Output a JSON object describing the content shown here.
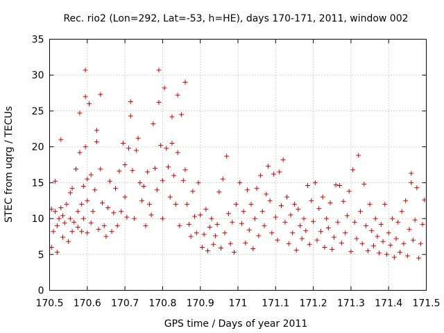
{
  "chart_data": {
    "type": "scatter",
    "title": "Rec. rio2 (Lon=292, Lat=-53, h=HE), days 170-171, 2011, window 002",
    "xlabel": "GPS time / Days of year 2011",
    "ylabel": "STEC from uqrg / TECUs",
    "xlim": [
      170.5,
      171.5
    ],
    "ylim": [
      0,
      35
    ],
    "x_ticks": [
      "170.5",
      "170.6",
      "170.7",
      "170.8",
      "170.9",
      "171",
      "171.1",
      "171.2",
      "171.3",
      "171.4",
      "171.5"
    ],
    "y_ticks": [
      "0",
      "5",
      "10",
      "15",
      "20",
      "25",
      "30",
      "35"
    ],
    "grid": true,
    "marker": "plus",
    "marker_color": "#cc0000",
    "series": [
      {
        "name": "",
        "points": [
          [
            170.505,
            11.3
          ],
          [
            170.505,
            6.0
          ],
          [
            170.51,
            8.2
          ],
          [
            170.515,
            11.0
          ],
          [
            170.515,
            15.2
          ],
          [
            170.52,
            9.0
          ],
          [
            170.52,
            5.3
          ],
          [
            170.525,
            10.0
          ],
          [
            170.53,
            21.0
          ],
          [
            170.53,
            11.5
          ],
          [
            170.535,
            10.4
          ],
          [
            170.535,
            7.4
          ],
          [
            170.54,
            9.4
          ],
          [
            170.545,
            12.0
          ],
          [
            170.55,
            6.8
          ],
          [
            170.555,
            13.6
          ],
          [
            170.555,
            10.0
          ],
          [
            170.56,
            14.2
          ],
          [
            170.56,
            8.2
          ],
          [
            170.565,
            9.5
          ],
          [
            170.57,
            16.9
          ],
          [
            170.575,
            11.0
          ],
          [
            170.575,
            8.8
          ],
          [
            170.58,
            24.7
          ],
          [
            170.58,
            19.2
          ],
          [
            170.585,
            12.0
          ],
          [
            170.585,
            8.2
          ],
          [
            170.59,
            14.5
          ],
          [
            170.59,
            10.0
          ],
          [
            170.595,
            30.7
          ],
          [
            170.595,
            27.0
          ],
          [
            170.595,
            20.0
          ],
          [
            170.6,
            15.5
          ],
          [
            170.6,
            12.5
          ],
          [
            170.6,
            8.0
          ],
          [
            170.605,
            26.0
          ],
          [
            170.61,
            16.1
          ],
          [
            170.61,
            9.4
          ],
          [
            170.615,
            11.0
          ],
          [
            170.62,
            14.0
          ],
          [
            170.625,
            22.3
          ],
          [
            170.625,
            20.7
          ],
          [
            170.63,
            8.5
          ],
          [
            170.635,
            27.3
          ],
          [
            170.635,
            16.9
          ],
          [
            170.64,
            12.2
          ],
          [
            170.645,
            9.0
          ],
          [
            170.65,
            7.5
          ],
          [
            170.655,
            11.5
          ],
          [
            170.66,
            15.2
          ],
          [
            170.665,
            8.2
          ],
          [
            170.67,
            10.8
          ],
          [
            170.675,
            14.2
          ],
          [
            170.68,
            9.0
          ],
          [
            170.685,
            16.6
          ],
          [
            170.69,
            11.0
          ],
          [
            170.695,
            20.5
          ],
          [
            170.7,
            17.5
          ],
          [
            170.7,
            13.0
          ],
          [
            170.705,
            10.2
          ],
          [
            170.71,
            19.8
          ],
          [
            170.715,
            24.3
          ],
          [
            170.715,
            26.3
          ],
          [
            170.72,
            16.7
          ],
          [
            170.725,
            10.0
          ],
          [
            170.73,
            19.5
          ],
          [
            170.735,
            21.2
          ],
          [
            170.74,
            15.0
          ],
          [
            170.745,
            12.5
          ],
          [
            170.75,
            14.5
          ],
          [
            170.755,
            9.0
          ],
          [
            170.76,
            16.5
          ],
          [
            170.765,
            12.0
          ],
          [
            170.77,
            10.5
          ],
          [
            170.775,
            23.2
          ],
          [
            170.78,
            17.0
          ],
          [
            170.785,
            14.0
          ],
          [
            170.79,
            30.7
          ],
          [
            170.79,
            26.2
          ],
          [
            170.795,
            20.2
          ],
          [
            170.8,
            15.3
          ],
          [
            170.8,
            10.0
          ],
          [
            170.805,
            28.2
          ],
          [
            170.81,
            19.8
          ],
          [
            170.815,
            17.2
          ],
          [
            170.82,
            13.0
          ],
          [
            170.825,
            24.2
          ],
          [
            170.825,
            20.5
          ],
          [
            170.83,
            16.0
          ],
          [
            170.835,
            12.0
          ],
          [
            170.84,
            27.2
          ],
          [
            170.84,
            19.2
          ],
          [
            170.845,
            9.0
          ],
          [
            170.85,
            24.5
          ],
          [
            170.855,
            15.3
          ],
          [
            170.86,
            29.0
          ],
          [
            170.86,
            16.8
          ],
          [
            170.865,
            12.0
          ],
          [
            170.87,
            9.2
          ],
          [
            170.875,
            7.5
          ],
          [
            170.88,
            13.8
          ],
          [
            170.885,
            10.3
          ],
          [
            170.89,
            8.0
          ],
          [
            170.895,
            15.0
          ],
          [
            170.9,
            10.5
          ],
          [
            170.905,
            6.0
          ],
          [
            170.91,
            7.8
          ],
          [
            170.915,
            11.3
          ],
          [
            170.92,
            5.5
          ],
          [
            170.925,
            8.8
          ],
          [
            170.93,
            10.0
          ],
          [
            170.935,
            6.4
          ],
          [
            170.94,
            7.6
          ],
          [
            170.945,
            9.2
          ],
          [
            170.95,
            13.7
          ],
          [
            170.955,
            5.9
          ],
          [
            170.96,
            15.5
          ],
          [
            170.965,
            8.0
          ],
          [
            170.97,
            18.7
          ],
          [
            170.975,
            10.7
          ],
          [
            170.98,
            6.5
          ],
          [
            170.985,
            9.5
          ],
          [
            170.99,
            5.3
          ],
          [
            170.995,
            12.0
          ],
          [
            171.005,
            15.0
          ],
          [
            171.01,
            9.3
          ],
          [
            171.015,
            11.0
          ],
          [
            171.02,
            6.6
          ],
          [
            171.025,
            14.0
          ],
          [
            171.03,
            8.4
          ],
          [
            171.035,
            12.0
          ],
          [
            171.04,
            5.8
          ],
          [
            171.045,
            10.0
          ],
          [
            171.05,
            14.2
          ],
          [
            171.055,
            7.6
          ],
          [
            171.06,
            16.0
          ],
          [
            171.065,
            11.0
          ],
          [
            171.07,
            9.0
          ],
          [
            171.075,
            13.4
          ],
          [
            171.08,
            17.3
          ],
          [
            171.085,
            12.5
          ],
          [
            171.09,
            8.0
          ],
          [
            171.095,
            16.2
          ],
          [
            171.1,
            10.2
          ],
          [
            171.105,
            7.0
          ],
          [
            171.11,
            16.5
          ],
          [
            171.115,
            11.8
          ],
          [
            171.12,
            18.2
          ],
          [
            171.125,
            9.5
          ],
          [
            171.13,
            13.0
          ],
          [
            171.135,
            6.5
          ],
          [
            171.14,
            10.5
          ],
          [
            171.145,
            8.0
          ],
          [
            171.15,
            12.0
          ],
          [
            171.155,
            5.6
          ],
          [
            171.16,
            11.3
          ],
          [
            171.165,
            9.0
          ],
          [
            171.17,
            7.2
          ],
          [
            171.175,
            10.0
          ],
          [
            171.18,
            8.3
          ],
          [
            171.185,
            14.6
          ],
          [
            171.19,
            6.4
          ],
          [
            171.195,
            12.5
          ],
          [
            171.2,
            9.6
          ],
          [
            171.205,
            15.0
          ],
          [
            171.21,
            7.0
          ],
          [
            171.215,
            11.4
          ],
          [
            171.22,
            8.2
          ],
          [
            171.225,
            13.0
          ],
          [
            171.23,
            6.0
          ],
          [
            171.235,
            10.0
          ],
          [
            171.24,
            8.7
          ],
          [
            171.245,
            12.2
          ],
          [
            171.25,
            5.7
          ],
          [
            171.255,
            7.4
          ],
          [
            171.26,
            14.7
          ],
          [
            171.265,
            9.5
          ],
          [
            171.27,
            14.6
          ],
          [
            171.275,
            6.6
          ],
          [
            171.28,
            12.4
          ],
          [
            171.285,
            8.0
          ],
          [
            171.29,
            10.4
          ],
          [
            171.295,
            13.8
          ],
          [
            171.3,
            5.4
          ],
          [
            171.305,
            16.8
          ],
          [
            171.31,
            9.5
          ],
          [
            171.315,
            7.2
          ],
          [
            171.32,
            18.8
          ],
          [
            171.325,
            11.0
          ],
          [
            171.33,
            6.5
          ],
          [
            171.335,
            14.8
          ],
          [
            171.34,
            9.0
          ],
          [
            171.345,
            5.5
          ],
          [
            171.35,
            12.0
          ],
          [
            171.355,
            8.3
          ],
          [
            171.36,
            6.2
          ],
          [
            171.365,
            10.0
          ],
          [
            171.37,
            7.5
          ],
          [
            171.375,
            5.2
          ],
          [
            171.38,
            9.2
          ],
          [
            171.385,
            6.8
          ],
          [
            171.39,
            12.0
          ],
          [
            171.395,
            5.0
          ],
          [
            171.4,
            8.0
          ],
          [
            171.405,
            6.3
          ],
          [
            171.41,
            10.0
          ],
          [
            171.415,
            4.6
          ],
          [
            171.42,
            7.2
          ],
          [
            171.425,
            9.5
          ],
          [
            171.43,
            5.3
          ],
          [
            171.435,
            11.0
          ],
          [
            171.44,
            6.5
          ],
          [
            171.445,
            12.5
          ],
          [
            171.45,
            4.8
          ],
          [
            171.455,
            8.5
          ],
          [
            171.46,
            16.3
          ],
          [
            171.46,
            15.0
          ],
          [
            171.465,
            7.0
          ],
          [
            171.47,
            9.8
          ],
          [
            171.475,
            14.3
          ],
          [
            171.48,
            4.5
          ],
          [
            171.485,
            6.5
          ],
          [
            171.49,
            9.2
          ],
          [
            171.495,
            12.6
          ]
        ]
      }
    ]
  }
}
